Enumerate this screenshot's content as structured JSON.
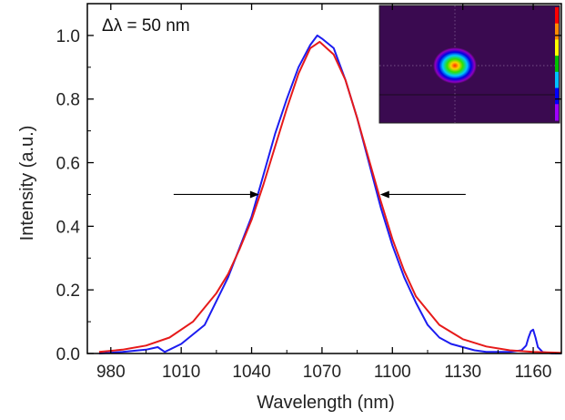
{
  "chart_data": {
    "type": "line",
    "xlabel": "Wavelength (nm)",
    "ylabel": "Intensity (a.u.)",
    "xlim": [
      970,
      1172
    ],
    "ylim": [
      0,
      1.1
    ],
    "x_ticks": [
      980,
      1010,
      1040,
      1070,
      1100,
      1130,
      1160
    ],
    "x_tick_labels": [
      "980",
      "1010",
      "1040",
      "1070",
      "1100",
      "1130",
      "1160"
    ],
    "y_ticks": [
      0.0,
      0.2,
      0.4,
      0.6,
      0.8,
      1.0
    ],
    "y_tick_labels": [
      "0.0",
      "0.2",
      "0.4",
      "0.6",
      "0.8",
      "1.0"
    ],
    "grid": false,
    "annotation": {
      "text": "Δλ = 50 nm",
      "fwhm_left_nm": 1044,
      "fwhm_right_nm": 1094,
      "level": 0.5
    },
    "series": [
      {
        "color": "#1c1cf0",
        "x": [
          975,
          985,
          995,
          1000,
          1003,
          1010,
          1020,
          1030,
          1040,
          1045,
          1050,
          1055,
          1060,
          1065,
          1068,
          1070,
          1075,
          1080,
          1085,
          1090,
          1095,
          1100,
          1105,
          1110,
          1115,
          1120,
          1125,
          1130,
          1135,
          1140,
          1145,
          1150,
          1155,
          1157,
          1158,
          1159,
          1160,
          1161,
          1162,
          1164,
          1168,
          1172
        ],
        "y": [
          0.0,
          0.005,
          0.012,
          0.02,
          0.005,
          0.03,
          0.09,
          0.24,
          0.43,
          0.56,
          0.69,
          0.8,
          0.9,
          0.97,
          1.0,
          0.99,
          0.96,
          0.86,
          0.74,
          0.6,
          0.46,
          0.34,
          0.24,
          0.16,
          0.09,
          0.05,
          0.03,
          0.02,
          0.01,
          0.005,
          0.005,
          0.005,
          0.01,
          0.025,
          0.05,
          0.07,
          0.075,
          0.05,
          0.02,
          0.005,
          0.0,
          0.0
        ]
      },
      {
        "color": "#e61a1a",
        "x": [
          975,
          985,
          995,
          1005,
          1015,
          1025,
          1030,
          1035,
          1040,
          1045,
          1050,
          1055,
          1060,
          1065,
          1069,
          1075,
          1080,
          1085,
          1090,
          1095,
          1100,
          1105,
          1110,
          1120,
          1130,
          1140,
          1150,
          1160,
          1172
        ],
        "y": [
          0.005,
          0.012,
          0.025,
          0.05,
          0.1,
          0.19,
          0.25,
          0.33,
          0.42,
          0.53,
          0.65,
          0.77,
          0.88,
          0.96,
          0.98,
          0.94,
          0.86,
          0.74,
          0.61,
          0.48,
          0.36,
          0.26,
          0.18,
          0.09,
          0.045,
          0.022,
          0.01,
          0.005,
          0.002
        ]
      }
    ]
  },
  "inset": {
    "colorbar_colors": [
      "#ff0000",
      "#ff8c00",
      "#ffff00",
      "#00c000",
      "#00c0ff",
      "#0000ff",
      "#a000ff"
    ]
  }
}
